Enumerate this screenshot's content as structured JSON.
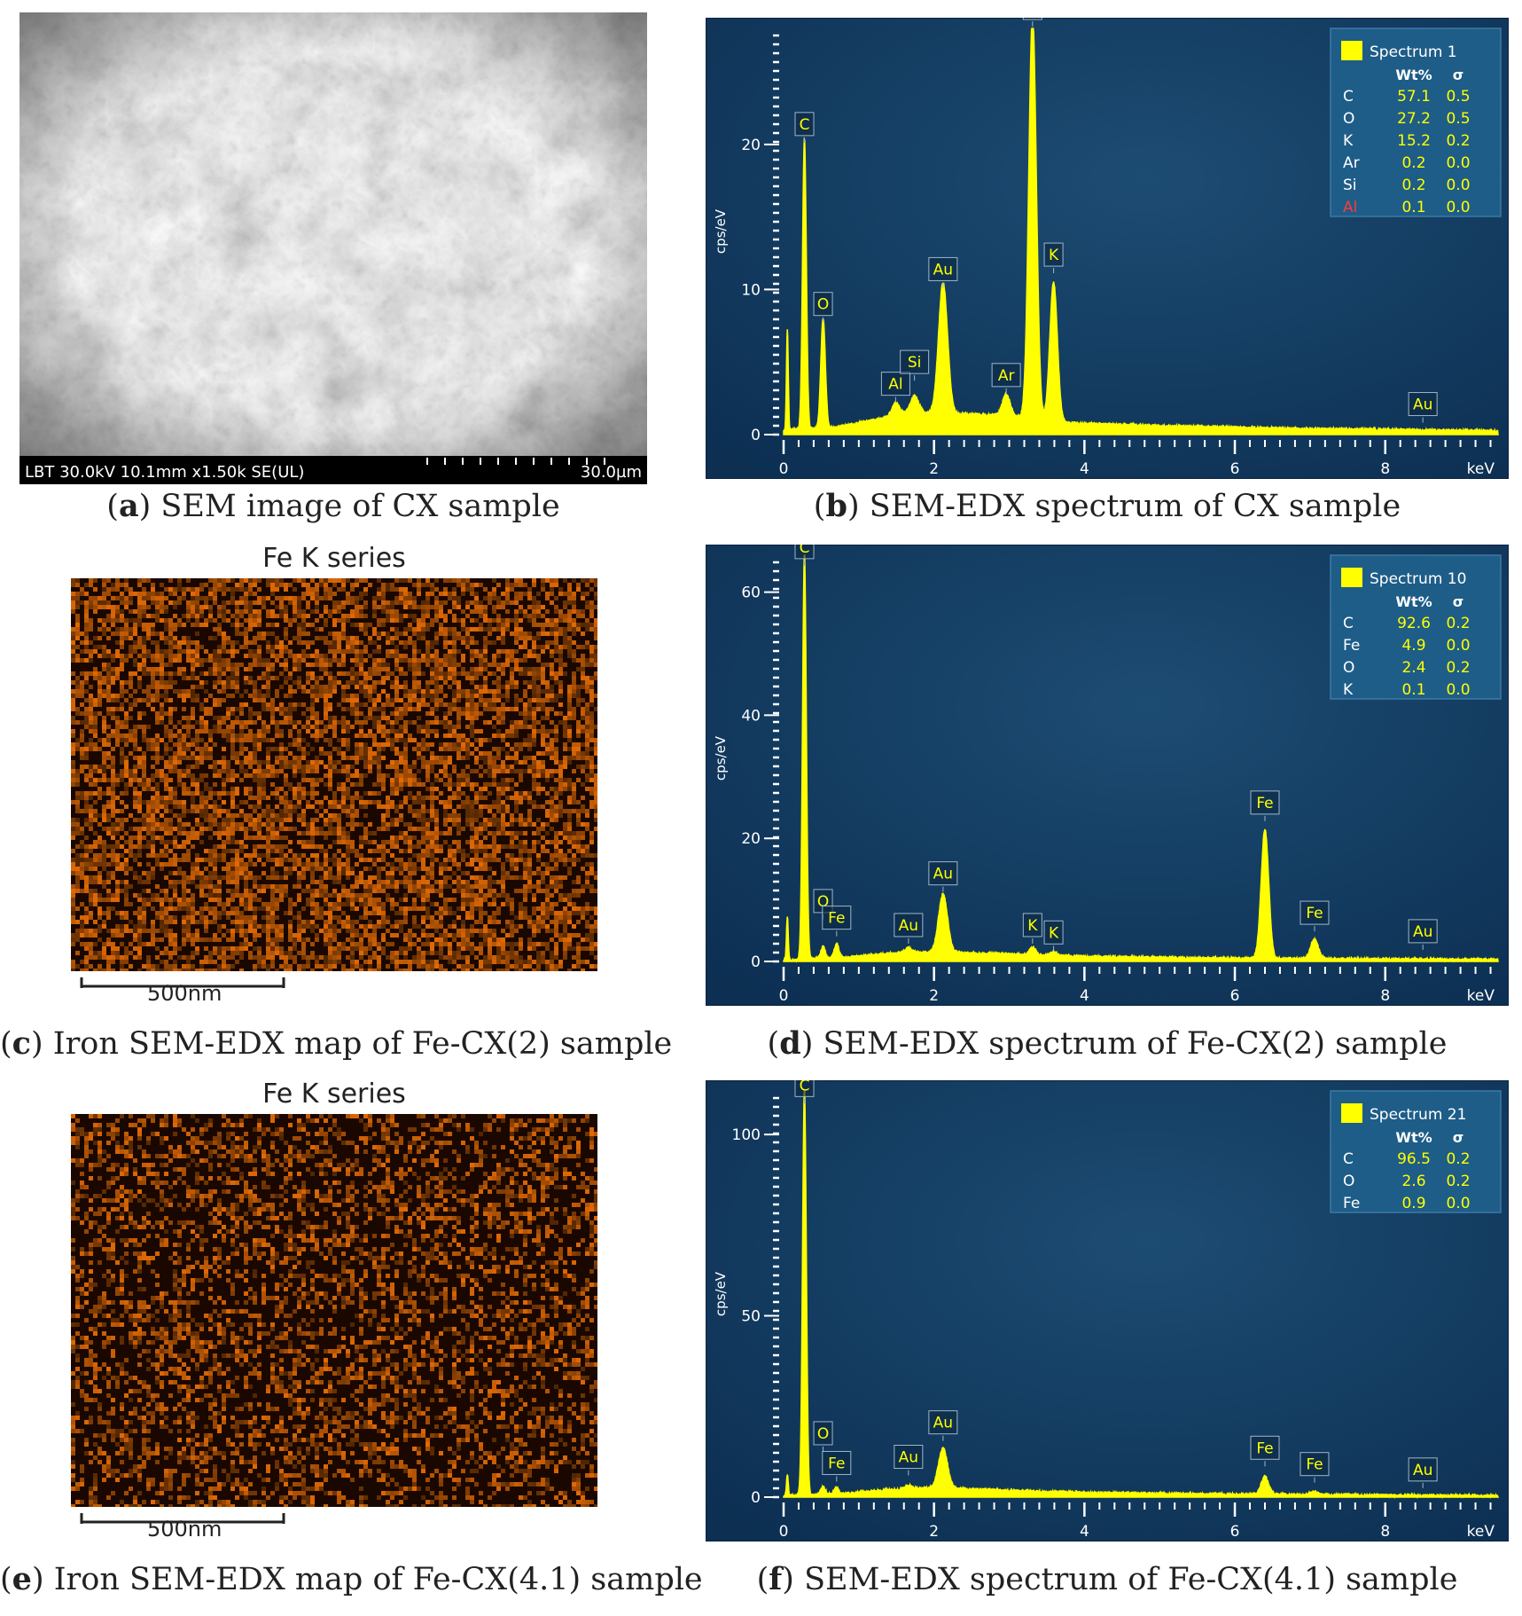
{
  "colors": {
    "spectrum": "#ffff00",
    "bg_top": "#1d4c73",
    "bg_bottom": "#0c2f52",
    "map_orange": "#c25a00",
    "accent_red": "#ff3a3a"
  },
  "panels": {
    "a": {
      "letter": "a",
      "caption": "SEM image of CX sample",
      "info_bar": "LBT 30.0kV 10.1mm x1.50k SE(UL)",
      "scale_label": "30.0µm"
    },
    "c": {
      "letter": "c",
      "caption": "Iron SEM-EDX map of Fe-CX(2) sample",
      "map_title": "Fe K series",
      "scale_label": "500nm",
      "density": 0.62
    },
    "e": {
      "letter": "e",
      "caption": "Iron SEM-EDX map of Fe-CX(4.1) sample",
      "map_title": "Fe K series",
      "scale_label": "500nm",
      "density": 0.38
    }
  },
  "chart_data": [
    {
      "id": "b",
      "type": "line",
      "caption": "SEM-EDX spectrum of CX sample",
      "letter": "b",
      "ylabel": "cps/eV",
      "xlabel": "keV",
      "xlim": [
        0,
        9.5
      ],
      "ylim": [
        0,
        28
      ],
      "xticks": [
        "0",
        "2",
        "4",
        "6",
        "8"
      ],
      "yticks": [
        0,
        10,
        20
      ],
      "ytick_labels": [
        "0",
        "10",
        "20"
      ],
      "legend": {
        "name": "Spectrum 1",
        "headers": [
          "Wt%",
          "σ"
        ],
        "rows": [
          [
            "C",
            "57.1",
            "0.5"
          ],
          [
            "O",
            "27.2",
            "0.5"
          ],
          [
            "K",
            "15.2",
            "0.2"
          ],
          [
            "Ar",
            "0.2",
            "0.0"
          ],
          [
            "Si",
            "0.2",
            "0.0"
          ],
          [
            "Al",
            "0.1",
            "0.0"
          ]
        ],
        "highlight_row": "Al"
      },
      "background": [
        [
          0,
          0.3
        ],
        [
          0.7,
          0.5
        ],
        [
          1.2,
          1.0
        ],
        [
          1.6,
          1.4
        ],
        [
          2.0,
          1.5
        ],
        [
          3.0,
          1.3
        ],
        [
          3.8,
          0.8
        ],
        [
          5,
          0.6
        ],
        [
          7,
          0.4
        ],
        [
          9.5,
          0.25
        ]
      ],
      "peaks": [
        [
          0.05,
          7,
          0.012
        ],
        [
          0.277,
          20,
          0.025
        ],
        [
          0.525,
          7.6,
          0.03
        ],
        [
          1.49,
          0.9,
          0.05
        ],
        [
          1.74,
          1.2,
          0.06
        ],
        [
          2.12,
          9.0,
          0.06
        ],
        [
          2.96,
          1.5,
          0.05
        ],
        [
          3.31,
          28,
          0.05
        ],
        [
          3.59,
          9.6,
          0.05
        ]
      ],
      "labels": [
        {
          "text": "C",
          "x": 0.277,
          "y": 20
        },
        {
          "text": "O",
          "x": 0.525,
          "y": 7.6
        },
        {
          "text": "Al",
          "x": 1.49,
          "y": 2.1
        },
        {
          "text": "Si",
          "x": 1.74,
          "y": 3.6
        },
        {
          "text": "Au",
          "x": 2.12,
          "y": 10
        },
        {
          "text": "Ar",
          "x": 2.96,
          "y": 2.7
        },
        {
          "text": "K",
          "x": 3.31,
          "y": 28
        },
        {
          "text": "K",
          "x": 3.59,
          "y": 11
        },
        {
          "text": "Au",
          "x": 8.5,
          "y": 0.7
        }
      ]
    },
    {
      "id": "d",
      "type": "line",
      "caption": "SEM-EDX spectrum of Fe-CX(2) sample",
      "letter": "d",
      "ylabel": "cps/eV",
      "xlabel": "keV",
      "xlim": [
        0,
        9.5
      ],
      "ylim": [
        0,
        66
      ],
      "xticks": [
        "0",
        "2",
        "4",
        "6",
        "8"
      ],
      "yticks": [
        0,
        20,
        40,
        60
      ],
      "ytick_labels": [
        "0",
        "20",
        "40",
        "60"
      ],
      "legend": {
        "name": "Spectrum 10",
        "headers": [
          "Wt%",
          "σ"
        ],
        "rows": [
          [
            "C",
            "92.6",
            "0.2"
          ],
          [
            "Fe",
            "4.9",
            "0.0"
          ],
          [
            "O",
            "2.4",
            "0.2"
          ],
          [
            "K",
            "0.1",
            "0.0"
          ]
        ]
      },
      "background": [
        [
          0,
          0.2
        ],
        [
          0.8,
          0.6
        ],
        [
          1.4,
          1.3
        ],
        [
          2.0,
          1.5
        ],
        [
          3.0,
          1.2
        ],
        [
          4.0,
          0.8
        ],
        [
          6.0,
          0.5
        ],
        [
          8,
          0.4
        ],
        [
          9.5,
          0.3
        ]
      ],
      "peaks": [
        [
          0.05,
          7,
          0.012
        ],
        [
          0.277,
          66,
          0.025
        ],
        [
          0.525,
          2.0,
          0.03
        ],
        [
          0.705,
          2.4,
          0.03
        ],
        [
          1.66,
          0.8,
          0.05
        ],
        [
          2.12,
          9.5,
          0.06
        ],
        [
          3.31,
          1.2,
          0.04
        ],
        [
          3.59,
          0.6,
          0.04
        ],
        [
          6.4,
          21,
          0.05
        ],
        [
          7.06,
          3.2,
          0.05
        ]
      ],
      "labels": [
        {
          "text": "C",
          "x": 0.277,
          "y": 64
        },
        {
          "text": "O",
          "x": 0.525,
          "y": 6.5
        },
        {
          "text": "Fe",
          "x": 0.705,
          "y": 3.8
        },
        {
          "text": "Au",
          "x": 1.66,
          "y": 2.6
        },
        {
          "text": "Au",
          "x": 2.12,
          "y": 11
        },
        {
          "text": "K",
          "x": 3.31,
          "y": 2.6
        },
        {
          "text": "K",
          "x": 3.59,
          "y": 1.4
        },
        {
          "text": "Fe",
          "x": 6.4,
          "y": 22.5
        },
        {
          "text": "Fe",
          "x": 7.06,
          "y": 4.6
        },
        {
          "text": "Au",
          "x": 8.5,
          "y": 1.6
        }
      ]
    },
    {
      "id": "f",
      "type": "line",
      "caption": "SEM-EDX spectrum of Fe-CX(4.1) sample",
      "letter": "f",
      "ylabel": "cps/eV",
      "xlabel": "keV",
      "xlim": [
        0,
        9.5
      ],
      "ylim": [
        0,
        112
      ],
      "xticks": [
        "0",
        "2",
        "4",
        "6",
        "8"
      ],
      "yticks": [
        0,
        50,
        100
      ],
      "ytick_labels": [
        "0",
        "50",
        "100"
      ],
      "legend": {
        "name": "Spectrum 21",
        "headers": [
          "Wt%",
          "σ"
        ],
        "rows": [
          [
            "C",
            "96.5",
            "0.2"
          ],
          [
            "O",
            "2.6",
            "0.2"
          ],
          [
            "Fe",
            "0.9",
            "0.0"
          ]
        ]
      },
      "background": [
        [
          0,
          0.3
        ],
        [
          0.8,
          1.0
        ],
        [
          1.4,
          2.0
        ],
        [
          2.0,
          2.6
        ],
        [
          3.0,
          1.8
        ],
        [
          4.0,
          1.2
        ],
        [
          6.0,
          0.8
        ],
        [
          8,
          0.5
        ],
        [
          9.5,
          0.4
        ]
      ],
      "peaks": [
        [
          0.05,
          6,
          0.012
        ],
        [
          0.277,
          112,
          0.025
        ],
        [
          0.525,
          2.0,
          0.03
        ],
        [
          0.705,
          1.8,
          0.03
        ],
        [
          1.66,
          1.0,
          0.05
        ],
        [
          2.12,
          11,
          0.06
        ],
        [
          6.4,
          5,
          0.05
        ],
        [
          7.06,
          0.8,
          0.05
        ]
      ],
      "labels": [
        {
          "text": "C",
          "x": 0.277,
          "y": 108
        },
        {
          "text": "O",
          "x": 0.525,
          "y": 12
        },
        {
          "text": "Fe",
          "x": 0.705,
          "y": 3.8
        },
        {
          "text": "Au",
          "x": 1.66,
          "y": 5.5
        },
        {
          "text": "Au",
          "x": 2.12,
          "y": 15
        },
        {
          "text": "Fe",
          "x": 6.4,
          "y": 8
        },
        {
          "text": "Fe",
          "x": 7.06,
          "y": 3.5
        },
        {
          "text": "Au",
          "x": 8.5,
          "y": 2.0
        }
      ]
    }
  ]
}
